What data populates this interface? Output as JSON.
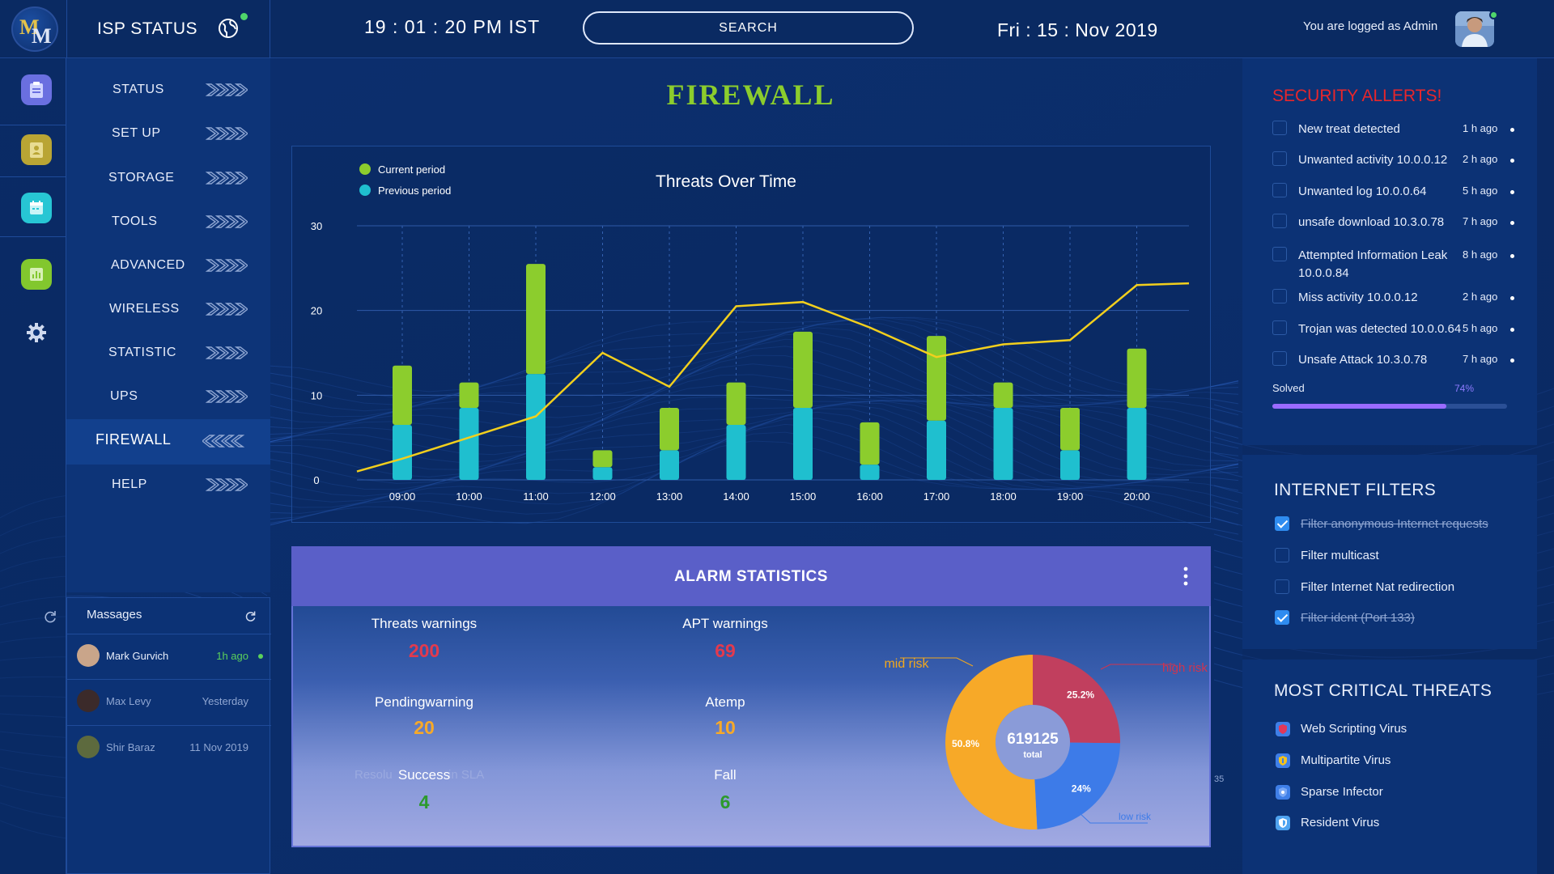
{
  "header": {
    "logo_letters": [
      "M",
      "M"
    ],
    "app_title": "ISP STATUS",
    "clock": "19 : 01 : 20 PM IST",
    "search_label": "SEARCH",
    "date": "Fri : 15 : Nov 2019",
    "login_text": "You are logged as Admin"
  },
  "rail": {
    "icons": [
      "clipboard-icon",
      "contact-card-icon",
      "calendar-icon",
      "chart-icon",
      "gear-icon"
    ]
  },
  "nav": {
    "items": [
      {
        "label": "STATUS",
        "active": false
      },
      {
        "label": "SET UP",
        "active": false
      },
      {
        "label": "STORAGE",
        "active": false
      },
      {
        "label": "TOOLS",
        "active": false
      },
      {
        "label": "ADVANCED",
        "active": false
      },
      {
        "label": "WIRELESS",
        "active": false
      },
      {
        "label": "STATISTIC",
        "active": false
      },
      {
        "label": "UPS",
        "active": false
      },
      {
        "label": "FIREWALL",
        "active": true
      },
      {
        "label": "HELP",
        "active": false
      }
    ]
  },
  "messages": {
    "title": "Massages",
    "items": [
      {
        "name": "Mark Gurvich",
        "time": "1h ago",
        "unread": true
      },
      {
        "name": "Max Levy",
        "time": "Yesterday",
        "unread": false
      },
      {
        "name": "Shir Baraz",
        "time": "11 Nov 2019",
        "unread": false
      }
    ]
  },
  "page_title": "FIREWALL",
  "chart_data": {
    "type": "bar",
    "title": "Threats Over Time",
    "categories": [
      "09:00",
      "10:00",
      "11:00",
      "12:00",
      "13:00",
      "14:00",
      "15:00",
      "16:00",
      "17:00",
      "18:00",
      "19:00",
      "20:00"
    ],
    "ylim": [
      0,
      30
    ],
    "yticks": [
      0,
      10,
      20,
      30
    ],
    "grid": true,
    "legend_position": "top-left",
    "series": [
      {
        "name": "Current period",
        "color": "#8ccd2d",
        "stacked_on": "Previous period",
        "values": [
          7,
          3,
          13,
          2,
          5,
          5,
          9,
          5,
          10,
          3,
          5,
          7
        ]
      },
      {
        "name": "Previous period",
        "color": "#1fbfcf",
        "values": [
          6.5,
          8.5,
          12.5,
          1.5,
          3.5,
          6.5,
          8.5,
          1.8,
          7,
          8.5,
          3.5,
          8.5
        ]
      }
    ],
    "trend_line": {
      "color": "#f2cf1d",
      "values": [
        1,
        5,
        7.5,
        15,
        11,
        20.5,
        21,
        18,
        14.5,
        16,
        16.5,
        23
      ]
    }
  },
  "alarm": {
    "title": "ALARM STATISTICS",
    "stats": [
      {
        "label": "Threats warnings",
        "value": "200",
        "color": "#e23a4e"
      },
      {
        "label": "APT warnings",
        "value": "69",
        "color": "#e23a4e"
      },
      {
        "label": "Pendingwarning",
        "value": "20",
        "color": "#f7a928"
      },
      {
        "label": "Atemp",
        "value": "10",
        "color": "#f7a928"
      },
      {
        "label": "Success",
        "value": "4",
        "color": "#2c9a2c"
      },
      {
        "label": "Fall",
        "value": "6",
        "color": "#2c9a2c"
      }
    ],
    "ghost_text": [
      "Resolu",
      "in SLA"
    ],
    "side_number": "35",
    "donut": {
      "type": "pie",
      "total_value": "619125",
      "total_label": "total",
      "slices": [
        {
          "label": "high risk",
          "value": 25.2,
          "pct_text": "25.2%",
          "color": "#c13f5e",
          "label_color": "#d0344f"
        },
        {
          "label": "low risk",
          "value": 24,
          "pct_text": "24%",
          "color": "#3d7be8",
          "label_color": "#3d7be8"
        },
        {
          "label": "mid risk",
          "value": 50.8,
          "pct_text": "50.8%",
          "color": "#f7a928",
          "label_color": "#f2a81d"
        }
      ]
    }
  },
  "security_alerts": {
    "title": "SECURITY ALLERTS!",
    "items": [
      {
        "text": "New treat detected",
        "time": "1 h ago"
      },
      {
        "text": "Unwanted activity 10.0.0.12",
        "time": "2 h ago"
      },
      {
        "text": "Unwanted log 10.0.0.64",
        "time": "5 h ago"
      },
      {
        "text": "unsafe download 10.3.0.78",
        "time": "7 h ago"
      },
      {
        "text": "Attempted Information Leak 10.0.0.84",
        "time": "8 h ago"
      },
      {
        "text": "Miss activity 10.0.0.12",
        "time": "2 h ago"
      },
      {
        "text": "Trojan was detected 10.0.0.64",
        "time": "5 h ago"
      },
      {
        "text": "Unsafe Attack 10.3.0.78",
        "time": "7 h ago"
      }
    ],
    "solved_label": "Solved",
    "solved_pct_text": "74%",
    "solved_fraction": 0.74
  },
  "internet_filters": {
    "title": "INTERNET FILTERS",
    "items": [
      {
        "text": "Filter anonymous Internet requests",
        "checked": true
      },
      {
        "text": "Filter multicast",
        "checked": false
      },
      {
        "text": "Filter Internet Nat redirection",
        "checked": false
      },
      {
        "text": "Filter ident (Port 133)",
        "checked": true
      }
    ]
  },
  "critical_threats": {
    "title": "MOST CRITICAL THREATS",
    "items": [
      {
        "text": "Web Scripting Virus",
        "icon": "red-shield-icon",
        "color": "#e2385a"
      },
      {
        "text": "Multipartite Virus",
        "icon": "yellow-shield-icon",
        "color": "#f3c21e"
      },
      {
        "text": "Sparse Infector",
        "icon": "blue-shield-icon",
        "color": "#3f7fe8"
      },
      {
        "text": "Resident Virus",
        "icon": "light-blue-shield-icon",
        "color": "#4fa3f0"
      }
    ]
  }
}
